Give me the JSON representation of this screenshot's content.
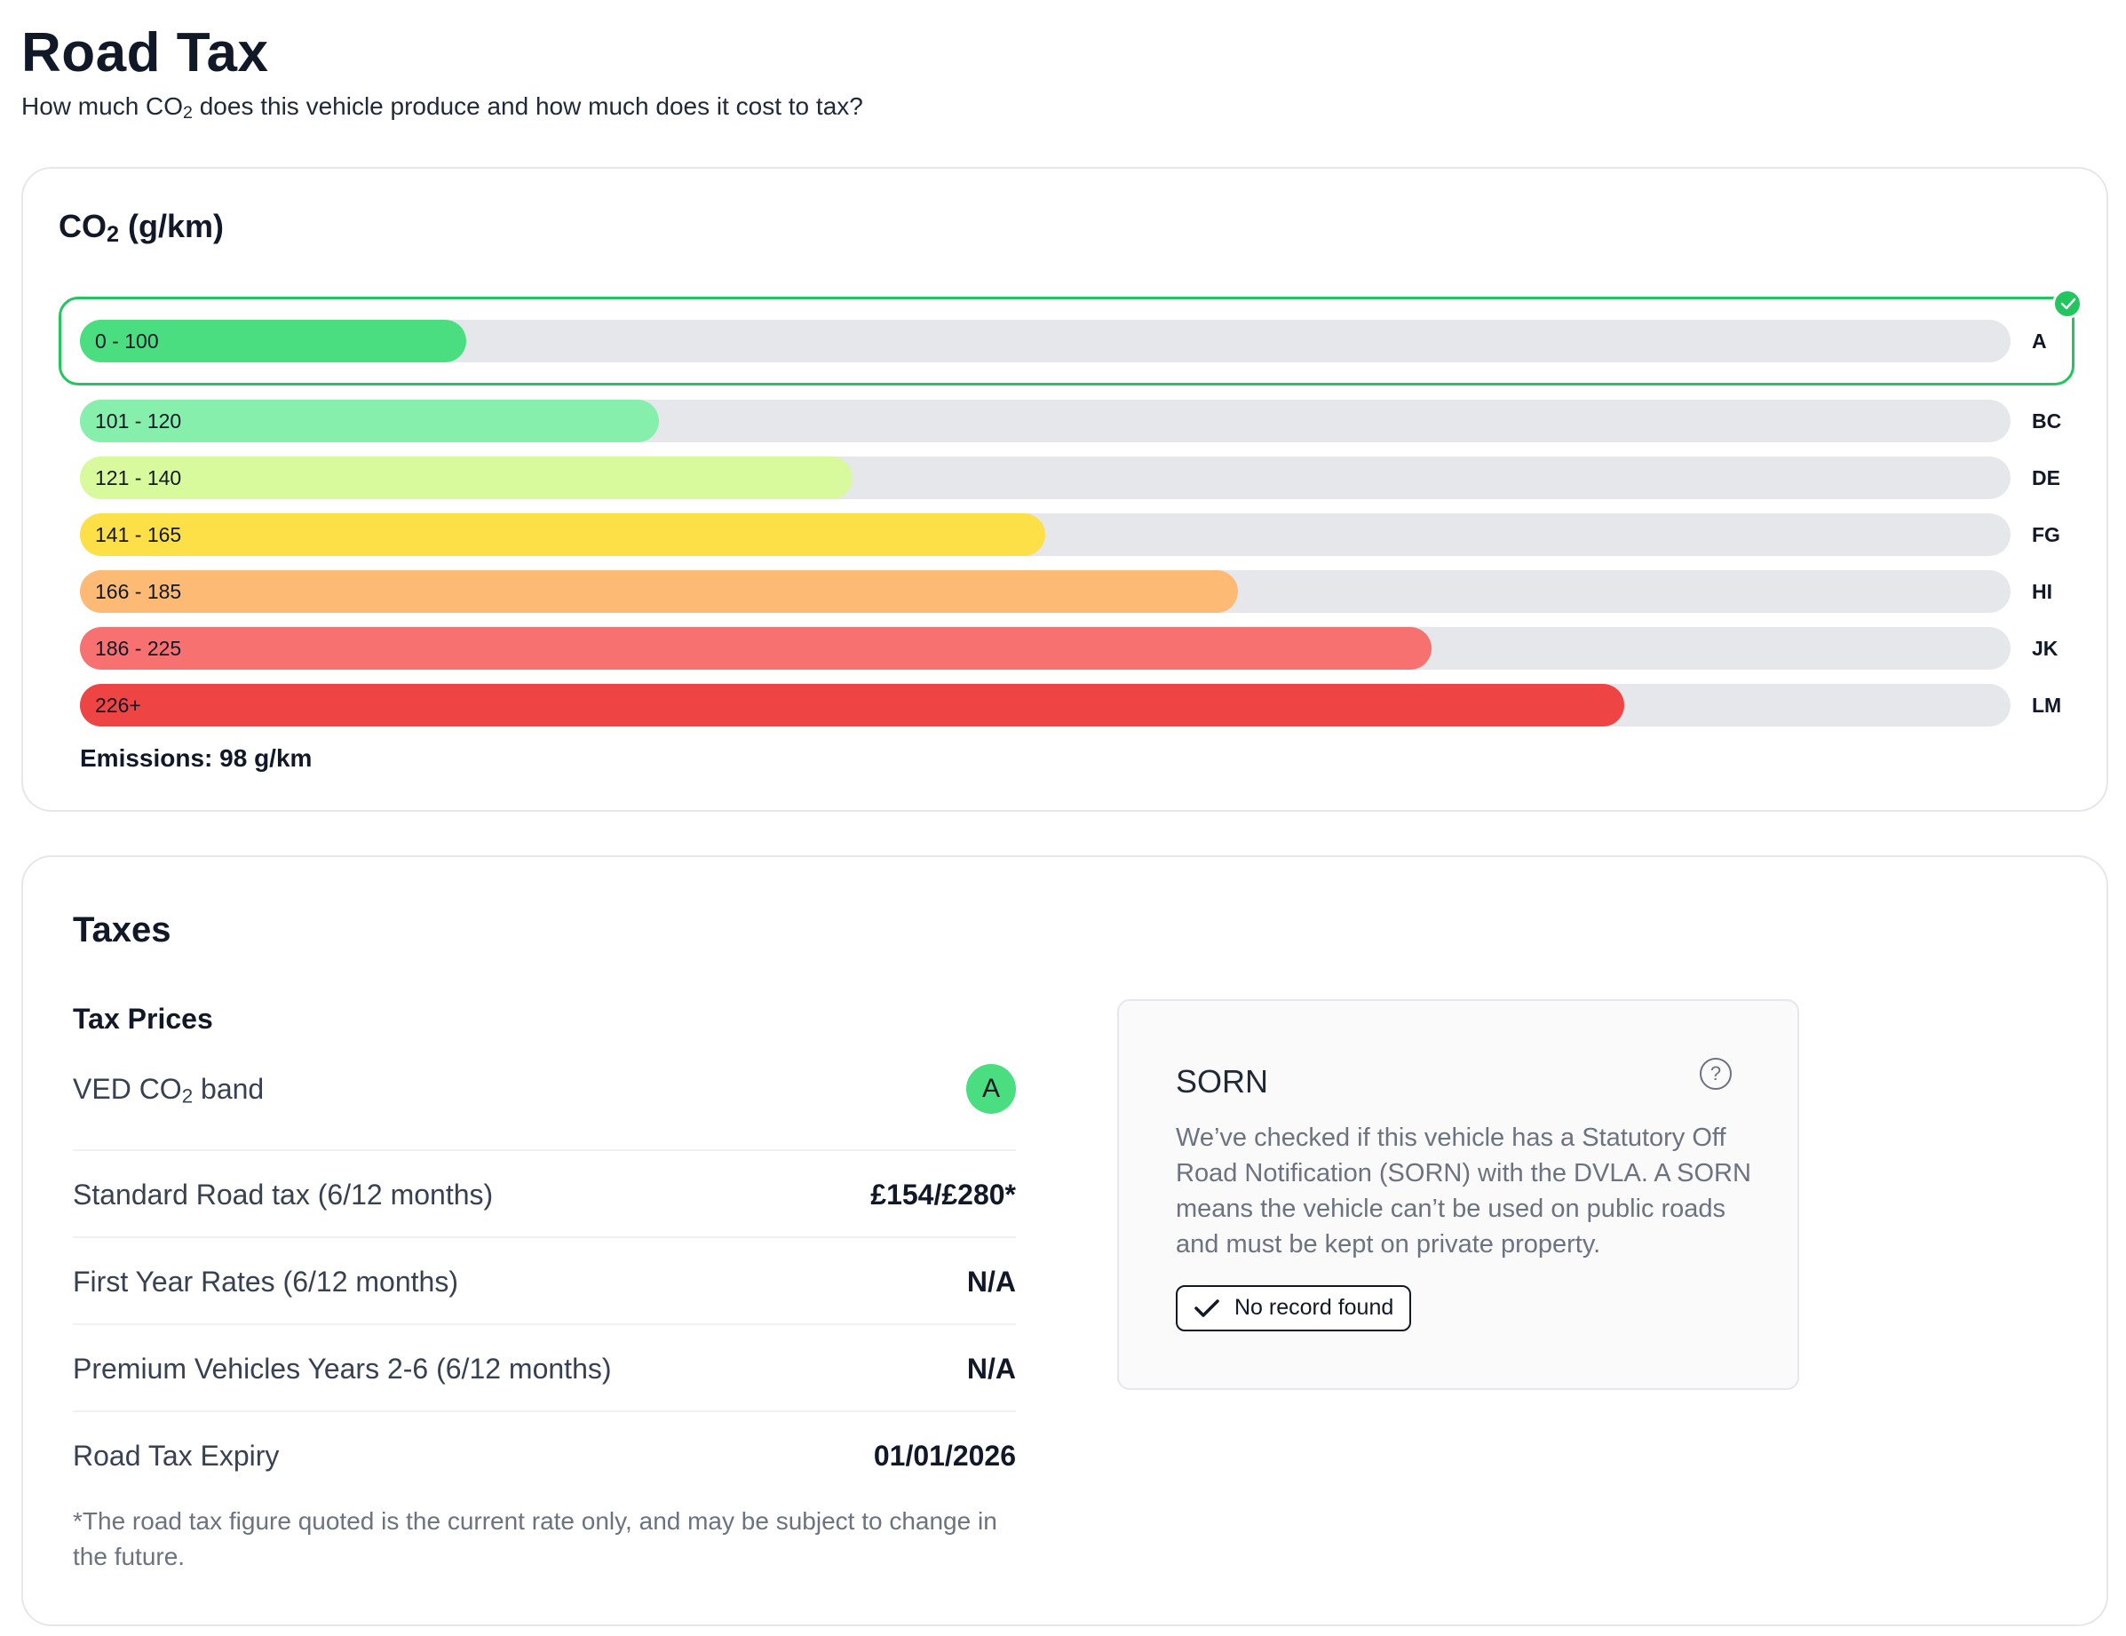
{
  "page": {
    "title": "Road Tax",
    "subtitle_pre": "How much CO",
    "subtitle_sub": "2",
    "subtitle_post": " does this vehicle produce and how much does it cost to tax?"
  },
  "co2": {
    "title_pre": "CO",
    "title_sub": "2",
    "title_post": " (g/km)",
    "selected_band": "A",
    "bands": [
      {
        "range": "0 - 100",
        "letter": "A",
        "fill": 0.2,
        "color": "#4ade80"
      },
      {
        "range": "101 - 120",
        "letter": "BC",
        "fill": 0.3,
        "color": "#86efac"
      },
      {
        "range": "121 - 140",
        "letter": "DE",
        "fill": 0.4,
        "color": "#d9f99d"
      },
      {
        "range": "141 - 165",
        "letter": "FG",
        "fill": 0.5,
        "color": "#fde047"
      },
      {
        "range": "166 - 185",
        "letter": "HI",
        "fill": 0.6,
        "color": "#fdba74"
      },
      {
        "range": "186 - 225",
        "letter": "JK",
        "fill": 0.7,
        "color": "#f87171"
      },
      {
        "range": "226+",
        "letter": "LM",
        "fill": 0.8,
        "color": "#ef4444"
      }
    ],
    "emissions": "Emissions: 98 g/km",
    "check_icon": "check-circle-icon"
  },
  "taxes": {
    "title": "Taxes",
    "prices_title": "Tax Prices",
    "ved_label_pre": "VED CO",
    "ved_label_sub": "2",
    "ved_label_post": " band",
    "ved_band": "A",
    "rows": [
      {
        "label": "Standard Road tax (6/12 months)",
        "value": "£154/£280*"
      },
      {
        "label": "First Year Rates (6/12 months)",
        "value": "N/A"
      },
      {
        "label": "Premium Vehicles Years 2-6 (6/12 months)",
        "value": "N/A"
      },
      {
        "label": "Road Tax Expiry",
        "value": "01/01/2026"
      }
    ],
    "footnote": "*The road tax figure quoted is the current rate only, and may be subject to change in the future."
  },
  "sorn": {
    "title": "SORN",
    "help_icon": "?",
    "description": "We’ve checked if this vehicle has a Statutory Off Road Notification (SORN) with the DVLA. A SORN means the vehicle can’t be used on public roads and must be kept on private property.",
    "status": "No record found"
  }
}
